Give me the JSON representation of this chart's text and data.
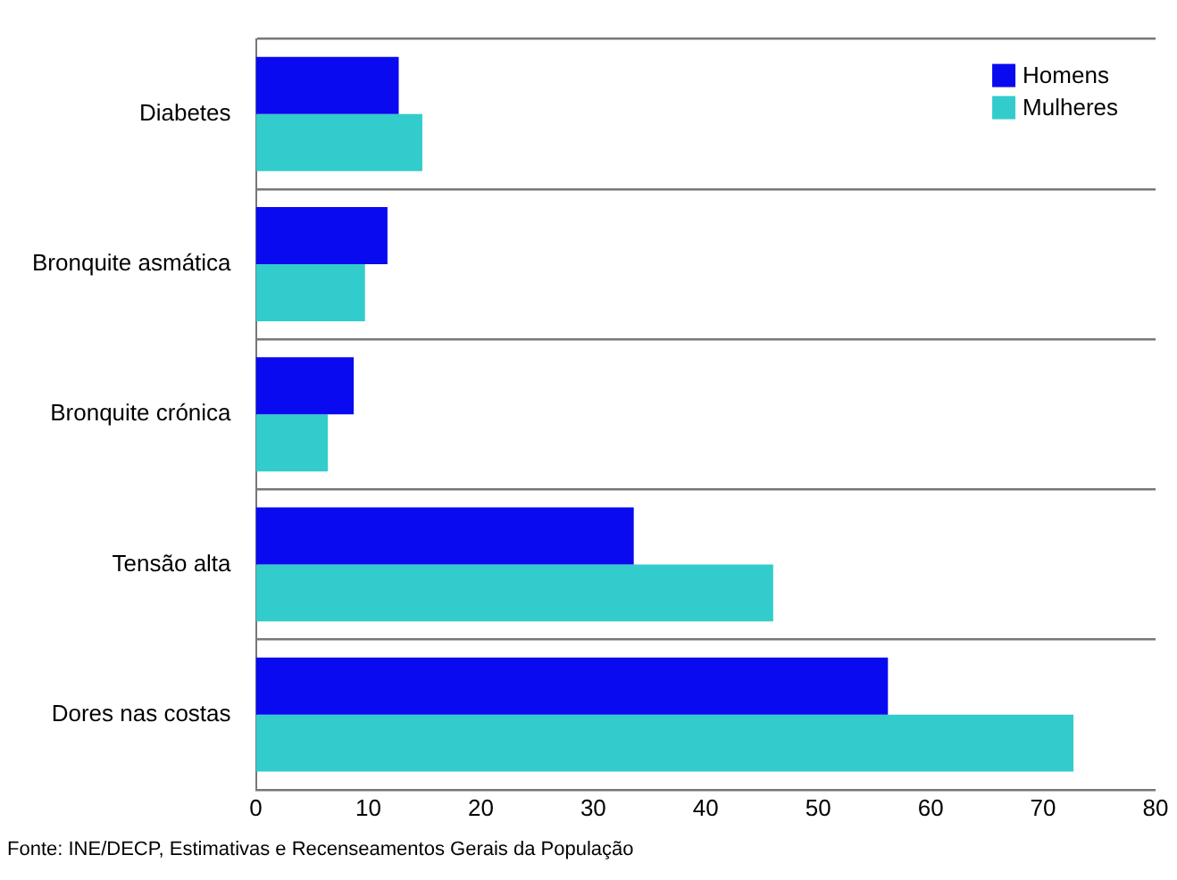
{
  "chart_data": {
    "type": "bar",
    "orientation": "horizontal",
    "categories": [
      "Diabetes",
      "Bronquite asmática",
      "Bronquite crónica",
      "Tensão alta",
      "Dores nas costas"
    ],
    "series": [
      {
        "name": "Homens",
        "color": "#0a0af0",
        "values": [
          12.7,
          11.7,
          8.7,
          33.6,
          56.2
        ]
      },
      {
        "name": "Mulheres",
        "color": "#33cccc",
        "values": [
          14.8,
          9.7,
          6.4,
          46.0,
          72.7
        ]
      }
    ],
    "xlim": [
      0,
      80
    ],
    "xticks": [
      0,
      10,
      20,
      30,
      40,
      50,
      60,
      70,
      80
    ],
    "grid": "y",
    "legend": "top right",
    "annotations": [
      "Fonte: INE/DECP, Estimativas e Recenseamentos Gerais da População"
    ]
  }
}
